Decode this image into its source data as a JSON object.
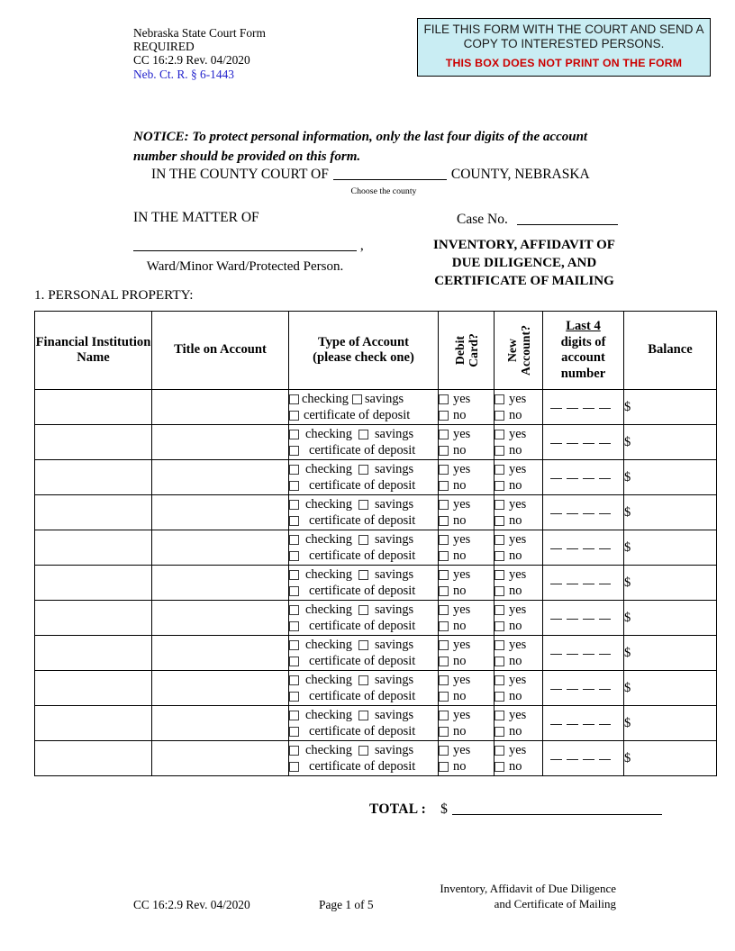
{
  "form_meta": {
    "line1": "Nebraska State Court Form",
    "line2": "REQUIRED",
    "line3": "CC 16:2.9 Rev. 04/2020",
    "rule_link": "Neb. Ct. R. § 6-1443"
  },
  "instruction_box": {
    "line1": "FILE THIS FORM WITH THE COURT AND SEND A",
    "line2": "COPY TO INTERESTED PERSONS.",
    "warning": "THIS BOX DOES NOT PRINT ON THE FORM",
    "background": "#c9edf3",
    "warning_color": "#cc0000"
  },
  "notice": {
    "text": "NOTICE: To protect personal information, only the last four digits of the account number should be provided on this form."
  },
  "court_line": {
    "prefix": "IN THE COUNTY COURT OF",
    "suffix": "COUNTY, NEBRASKA",
    "hint": "Choose the county"
  },
  "matter": {
    "label": "IN THE MATTER OF",
    "comma": ",",
    "party_caption": "Ward/Minor Ward/Protected Person.",
    "case_no_label": "Case No.",
    "doc_title_line1": "INVENTORY, AFFIDAVIT OF",
    "doc_title_line2": "DUE DILIGENCE, AND",
    "doc_title_line3": "CERTIFICATE OF MAILING"
  },
  "section_title": "1. PERSONAL PROPERTY:",
  "table": {
    "row_count": 11,
    "columns": {
      "institution": "Financial Institution Name",
      "title": "Title on Account",
      "type_line1": "Type of Account",
      "type_line2": "(please check one)",
      "debit_line1": "Debit",
      "debit_line2": "Card?",
      "new_line1": "New",
      "new_line2": "Account?",
      "last4_top": "Last 4",
      "last4_rest": "digits of account number",
      "balance": "Balance"
    },
    "row_labels": {
      "checking": "checking",
      "savings": "savings",
      "certificate": "certificate of deposit",
      "yes": "yes",
      "no": "no",
      "last4_blank": "_ _ _ _",
      "dollar": "$"
    }
  },
  "total": {
    "label": "TOTAL :",
    "currency": "$"
  },
  "footer": {
    "form_code": "CC 16:2.9 Rev. 04/2020",
    "page": "Page 1 of 5",
    "doc_line1": "Inventory, Affidavit of Due Diligence",
    "doc_line2": "and Certificate of Mailing"
  }
}
